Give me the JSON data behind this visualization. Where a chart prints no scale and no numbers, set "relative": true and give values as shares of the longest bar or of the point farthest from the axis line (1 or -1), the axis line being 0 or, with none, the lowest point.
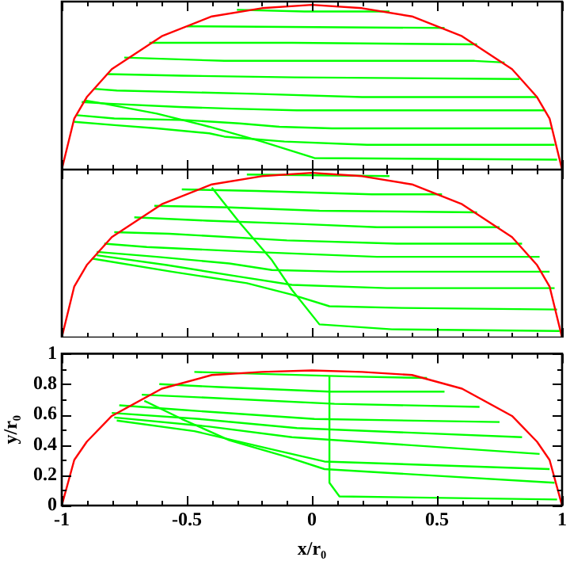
{
  "chart_data": [
    {
      "type": "line",
      "relative": true,
      "xlim": [
        -1,
        1
      ],
      "tick_labels": false,
      "grid": false,
      "legend": false,
      "marker": "none",
      "xticks": [
        -1,
        {
          "value": -0.9,
          "label": null
        },
        {
          "value": -0.8,
          "label": null
        },
        {
          "value": -0.7,
          "label": null
        },
        {
          "value": -0.6,
          "label": null
        },
        -0.5,
        {
          "value": -0.4,
          "label": null
        },
        {
          "value": -0.3,
          "label": null
        },
        {
          "value": -0.2,
          "label": null
        },
        {
          "value": -0.1,
          "label": null
        },
        0,
        {
          "value": 0.1,
          "label": null
        },
        {
          "value": 0.2,
          "label": null
        },
        {
          "value": 0.3,
          "label": null
        },
        {
          "value": 0.4,
          "label": null
        },
        0.5,
        {
          "value": 0.6,
          "label": null
        },
        {
          "value": 0.7,
          "label": null
        },
        {
          "value": 0.8,
          "label": null
        },
        {
          "value": 0.9,
          "label": null
        },
        1
      ],
      "series": [
        {
          "color": "#ff0000",
          "x": [
            -1,
            -0.95,
            -0.9,
            -0.8,
            -0.6,
            -0.4,
            -0.2,
            0,
            0.2,
            0.4,
            0.6,
            0.8,
            0.9,
            0.95,
            1
          ],
          "values": [
            0,
            0.31,
            0.44,
            0.61,
            0.81,
            0.93,
            0.98,
            1,
            0.98,
            0.93,
            0.81,
            0.61,
            0.44,
            0.31,
            0
          ]
        },
        {
          "color": "#00ff00",
          "x": [
            -0.3,
            -0.03,
            0.31
          ],
          "values": [
            0.97,
            0.96,
            0.96
          ]
        },
        {
          "color": "#00ff00",
          "x": [
            -0.5,
            0.53
          ],
          "values": [
            0.87,
            0.86
          ]
        },
        {
          "color": "#00ff00",
          "x": [
            -0.65,
            -0.08,
            0.66
          ],
          "values": [
            0.77,
            0.77,
            0.76
          ]
        },
        {
          "color": "#00ff00",
          "x": [
            -0.75,
            -0.35,
            0.65,
            0.77
          ],
          "values": [
            0.68,
            0.66,
            0.66,
            0.65
          ]
        },
        {
          "color": "#00ff00",
          "x": [
            -0.82,
            -0.52,
            -0.07,
            0.83
          ],
          "values": [
            0.58,
            0.57,
            0.56,
            0.55
          ]
        },
        {
          "color": "#00ff00",
          "x": [
            -0.87,
            -0.78,
            -0.23,
            0.2,
            0.9
          ],
          "values": [
            0.49,
            0.48,
            0.46,
            0.44,
            0.44
          ]
        },
        {
          "color": "#00ff00",
          "x": [
            -0.92,
            -0.81,
            -0.53,
            -0.32,
            -0.06,
            0.93
          ],
          "values": [
            0.41,
            0.4,
            0.38,
            0.37,
            0.36,
            0.36
          ]
        },
        {
          "color": "#00ff00",
          "x": [
            -0.94,
            -0.79,
            -0.5,
            -0.29,
            -0.13,
            0.08,
            0.96
          ],
          "values": [
            0.33,
            0.31,
            0.3,
            0.28,
            0.26,
            0.25,
            0.25
          ]
        },
        {
          "color": "#00ff00",
          "x": [
            -0.95,
            -0.79,
            -0.62,
            -0.41,
            -0.35,
            -0.11,
            0.22,
            0.97
          ],
          "values": [
            0.29,
            0.27,
            0.25,
            0.22,
            0.2,
            0.17,
            0.15,
            0.15
          ]
        },
        {
          "color": "#00ff00",
          "x": [
            -0.91,
            -0.83,
            -0.62,
            -0.41,
            -0.2,
            0.01,
            0.98
          ],
          "values": [
            0.42,
            0.4,
            0.34,
            0.26,
            0.17,
            0.07,
            0.06
          ]
        }
      ]
    },
    {
      "type": "line",
      "relative": true,
      "xlim": [
        -1,
        1
      ],
      "tick_labels": false,
      "grid": false,
      "legend": false,
      "marker": "none",
      "xticks": [
        -1,
        {
          "value": -0.9,
          "label": null
        },
        {
          "value": -0.8,
          "label": null
        },
        {
          "value": -0.7,
          "label": null
        },
        {
          "value": -0.6,
          "label": null
        },
        -0.5,
        {
          "value": -0.4,
          "label": null
        },
        {
          "value": -0.3,
          "label": null
        },
        {
          "value": -0.2,
          "label": null
        },
        {
          "value": -0.1,
          "label": null
        },
        0,
        {
          "value": 0.1,
          "label": null
        },
        {
          "value": 0.2,
          "label": null
        },
        {
          "value": 0.3,
          "label": null
        },
        {
          "value": 0.4,
          "label": null
        },
        0.5,
        {
          "value": 0.6,
          "label": null
        },
        {
          "value": 0.7,
          "label": null
        },
        {
          "value": 0.8,
          "label": null
        },
        {
          "value": 0.9,
          "label": null
        },
        1
      ],
      "series": [
        {
          "color": "#ff0000",
          "x": [
            -1,
            -0.95,
            -0.9,
            -0.8,
            -0.6,
            -0.4,
            -0.2,
            0,
            0.2,
            0.4,
            0.6,
            0.8,
            0.9,
            0.95,
            1
          ],
          "values": [
            0,
            0.31,
            0.44,
            0.61,
            0.81,
            0.93,
            0.98,
            1,
            0.98,
            0.93,
            0.81,
            0.61,
            0.44,
            0.31,
            0
          ]
        },
        {
          "color": "#00ff00",
          "x": [
            -0.26,
            0.31
          ],
          "values": [
            0.99,
            0.98
          ]
        },
        {
          "color": "#00ff00",
          "x": [
            -0.52,
            -0.22,
            0.24,
            0.52
          ],
          "values": [
            0.9,
            0.89,
            0.87,
            0.87
          ]
        },
        {
          "color": "#00ff00",
          "x": [
            -0.63,
            -0.33,
            0.03,
            0.66
          ],
          "values": [
            0.8,
            0.79,
            0.77,
            0.76
          ]
        },
        {
          "color": "#00ff00",
          "x": [
            -0.71,
            -0.42,
            -0.05,
            0.26,
            0.75
          ],
          "values": [
            0.73,
            0.71,
            0.69,
            0.67,
            0.67
          ]
        },
        {
          "color": "#00ff00",
          "x": [
            -0.79,
            -0.57,
            -0.1,
            0.34,
            0.84
          ],
          "values": [
            0.64,
            0.63,
            0.59,
            0.57,
            0.57
          ]
        },
        {
          "color": "#00ff00",
          "x": [
            -0.83,
            -0.66,
            -0.24,
            0.26,
            0.91
          ],
          "values": [
            0.57,
            0.55,
            0.52,
            0.49,
            0.49
          ]
        },
        {
          "color": "#00ff00",
          "x": [
            -0.86,
            -0.62,
            -0.33,
            -0.16,
            0.11,
            0.95
          ],
          "values": [
            0.52,
            0.49,
            0.45,
            0.41,
            0.4,
            0.4
          ]
        },
        {
          "color": "#00ff00",
          "x": [
            -0.86,
            -0.58,
            -0.29,
            -0.08,
            0.3,
            0.97
          ],
          "values": [
            0.5,
            0.44,
            0.37,
            0.32,
            0.3,
            0.3
          ]
        },
        {
          "color": "#00ff00",
          "x": [
            -0.88,
            -0.56,
            -0.26,
            -0.08,
            0.07,
            0.36,
            0.98
          ],
          "values": [
            0.48,
            0.4,
            0.33,
            0.26,
            0.19,
            0.18,
            0.17
          ]
        },
        {
          "color": "#00ff00",
          "x": [
            -0.4,
            -0.29,
            -0.16,
            -0.08,
            0.03,
            0.32,
            0.99
          ],
          "values": [
            0.91,
            0.7,
            0.47,
            0.29,
            0.08,
            0.05,
            0.04
          ]
        }
      ]
    },
    {
      "type": "line",
      "xlim": [
        -1,
        1
      ],
      "ylim": [
        0,
        1
      ],
      "grid": false,
      "legend": false,
      "marker": "none",
      "xlabel": "x/r₀",
      "ylabel": "y/r₀",
      "xticks": [
        -1,
        {
          "value": -0.9,
          "label": null
        },
        {
          "value": -0.8,
          "label": null
        },
        {
          "value": -0.7,
          "label": null
        },
        {
          "value": -0.6,
          "label": null
        },
        -0.5,
        {
          "value": -0.4,
          "label": null
        },
        {
          "value": -0.3,
          "label": null
        },
        {
          "value": -0.2,
          "label": null
        },
        {
          "value": -0.1,
          "label": null
        },
        0,
        {
          "value": 0.1,
          "label": null
        },
        {
          "value": 0.2,
          "label": null
        },
        {
          "value": 0.3,
          "label": null
        },
        {
          "value": 0.4,
          "label": null
        },
        0.5,
        {
          "value": 0.6,
          "label": null
        },
        {
          "value": 0.7,
          "label": null
        },
        {
          "value": 0.8,
          "label": null
        },
        {
          "value": 0.9,
          "label": null
        },
        1
      ],
      "yticks": [
        0,
        {
          "value": 0.1,
          "label": null
        },
        0.2,
        {
          "value": 0.3,
          "label": null
        },
        0.4,
        {
          "value": 0.5,
          "label": null
        },
        0.6,
        {
          "value": 0.7,
          "label": null
        },
        0.8,
        {
          "value": 0.9,
          "label": null
        },
        1
      ],
      "series": [
        {
          "color": "#ff0000",
          "x": [
            -1,
            -0.95,
            -0.9,
            -0.8,
            -0.6,
            -0.4,
            -0.2,
            0,
            0.2,
            0.4,
            0.6,
            0.8,
            0.9,
            0.95,
            1
          ],
          "values": [
            0,
            0.3,
            0.42,
            0.59,
            0.77,
            0.86,
            0.88,
            0.89,
            0.88,
            0.86,
            0.77,
            0.59,
            0.42,
            0.3,
            0
          ]
        },
        {
          "color": "#00ff00",
          "x": [
            -0.47,
            0.15,
            0.46
          ],
          "values": [
            0.88,
            0.85,
            0.84
          ]
        },
        {
          "color": "#00ff00",
          "x": [
            -0.61,
            -0.37,
            0.07,
            0.53
          ],
          "values": [
            0.8,
            0.78,
            0.75,
            0.75
          ]
        },
        {
          "color": "#00ff00",
          "x": [
            -0.68,
            -0.41,
            0.09,
            0.67
          ],
          "values": [
            0.73,
            0.71,
            0.67,
            0.65
          ]
        },
        {
          "color": "#00ff00",
          "x": [
            -0.77,
            -0.52,
            0.01,
            0.75
          ],
          "values": [
            0.66,
            0.63,
            0.57,
            0.55
          ]
        },
        {
          "color": "#00ff00",
          "x": [
            -0.8,
            -0.45,
            -0.06,
            0.84
          ],
          "values": [
            0.61,
            0.57,
            0.51,
            0.45
          ]
        },
        {
          "color": "#00ff00",
          "x": [
            -0.79,
            -0.41,
            -0.08,
            0.91
          ],
          "values": [
            0.58,
            0.52,
            0.45,
            0.34
          ]
        },
        {
          "color": "#00ff00",
          "x": [
            -0.78,
            -0.47,
            -0.16,
            0.05,
            0.95
          ],
          "values": [
            0.56,
            0.49,
            0.37,
            0.29,
            0.24
          ]
        },
        {
          "color": "#00ff00",
          "x": [
            -0.67,
            -0.52,
            -0.33,
            -0.1,
            0.05,
            0.97
          ],
          "values": [
            0.69,
            0.57,
            0.43,
            0.32,
            0.24,
            0.15
          ]
        },
        {
          "color": "#00ff00",
          "x": [
            0.07,
            0.07,
            0.11,
            0.98
          ],
          "values": [
            0.85,
            0.15,
            0.06,
            0.04
          ]
        }
      ]
    }
  ]
}
